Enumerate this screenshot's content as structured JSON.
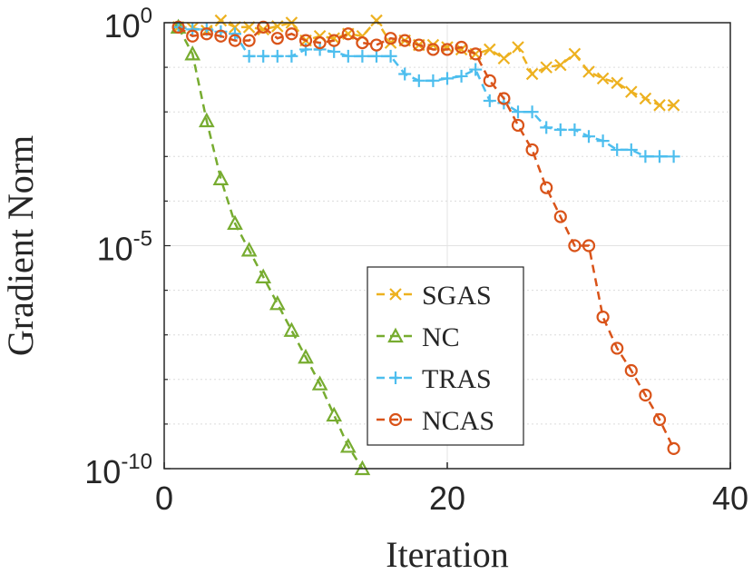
{
  "chart_data": {
    "type": "line",
    "title": "",
    "xlabel": "Iteration",
    "ylabel": "Gradient Norm",
    "xlim": [
      0,
      40
    ],
    "ylim_log10": [
      -10,
      0
    ],
    "yscale": "log",
    "grid": true,
    "legend_position": "bottom-center",
    "xticks": [
      {
        "value": 0,
        "label": "0"
      },
      {
        "value": 20,
        "label": "20"
      },
      {
        "value": 40,
        "label": "40"
      }
    ],
    "yticks": [
      {
        "log10": 0,
        "base": "10",
        "exp": "0"
      },
      {
        "log10": -5,
        "base": "10",
        "exp": "-5"
      },
      {
        "log10": -10,
        "base": "10",
        "exp": "-10"
      }
    ],
    "series": [
      {
        "name": "SGAS",
        "color": "#EDB120",
        "marker": "x",
        "x": [
          1,
          2,
          3,
          4,
          5,
          6,
          7,
          8,
          9,
          10,
          11,
          12,
          13,
          14,
          15,
          16,
          17,
          18,
          19,
          20,
          21,
          22,
          23,
          24,
          25,
          26,
          27,
          28,
          29,
          30,
          31,
          32,
          33,
          34,
          35,
          36
        ],
        "log10y": [
          -0.1,
          -0.12,
          -0.18,
          0.05,
          -0.1,
          -0.1,
          -0.15,
          -0.08,
          0.0,
          -0.4,
          -0.3,
          -0.35,
          -0.25,
          -0.3,
          0.05,
          -0.45,
          -0.4,
          -0.5,
          -0.5,
          -0.55,
          -0.6,
          -0.7,
          -0.6,
          -0.8,
          -0.55,
          -1.15,
          -1.0,
          -0.95,
          -0.7,
          -1.1,
          -1.25,
          -1.35,
          -1.55,
          -1.7,
          -1.85,
          -1.85
        ]
      },
      {
        "name": "NC",
        "color": "#77AC30",
        "marker": "triangle",
        "x": [
          1,
          2,
          3,
          4,
          5,
          6,
          7,
          8,
          9,
          10,
          11,
          12,
          13,
          14
        ],
        "log10y": [
          -0.1,
          -0.7,
          -2.2,
          -3.5,
          -4.5,
          -5.1,
          -5.7,
          -6.3,
          -6.9,
          -7.5,
          -8.1,
          -8.8,
          -9.5,
          -10.0
        ]
      },
      {
        "name": "TRAS",
        "color": "#4DBEEE",
        "marker": "plus",
        "x": [
          1,
          2,
          3,
          4,
          5,
          6,
          7,
          8,
          9,
          10,
          11,
          12,
          13,
          14,
          15,
          16,
          17,
          18,
          19,
          20,
          21,
          22,
          23,
          24,
          25,
          26,
          27,
          28,
          29,
          30,
          31,
          32,
          33,
          34,
          35,
          36
        ],
        "log10y": [
          -0.1,
          -0.15,
          -0.15,
          -0.2,
          -0.25,
          -0.75,
          -0.75,
          -0.75,
          -0.75,
          -0.6,
          -0.6,
          -0.65,
          -0.75,
          -0.75,
          -0.75,
          -0.75,
          -1.15,
          -1.3,
          -1.3,
          -1.25,
          -1.2,
          -1.05,
          -1.75,
          -1.8,
          -2.0,
          -2.0,
          -2.35,
          -2.4,
          -2.4,
          -2.55,
          -2.65,
          -2.85,
          -2.85,
          -3.0,
          -3.0,
          -3.0
        ]
      },
      {
        "name": "NCAS",
        "color": "#D95319",
        "marker": "circle",
        "x": [
          1,
          2,
          3,
          4,
          5,
          6,
          7,
          8,
          9,
          10,
          11,
          12,
          13,
          14,
          15,
          16,
          17,
          18,
          19,
          20,
          21,
          22,
          23,
          24,
          25,
          26,
          27,
          28,
          29,
          30,
          31,
          32,
          33,
          34,
          35,
          36
        ],
        "log10y": [
          -0.1,
          -0.3,
          -0.25,
          -0.3,
          -0.4,
          -0.4,
          -0.1,
          -0.35,
          -0.25,
          -0.4,
          -0.45,
          -0.4,
          -0.25,
          -0.45,
          -0.5,
          -0.35,
          -0.4,
          -0.5,
          -0.6,
          -0.6,
          -0.55,
          -0.7,
          -1.3,
          -1.7,
          -2.3,
          -2.85,
          -3.7,
          -4.35,
          -5.0,
          -5.0,
          -6.6,
          -7.3,
          -7.8,
          -8.35,
          -8.9,
          -9.55
        ]
      }
    ]
  }
}
